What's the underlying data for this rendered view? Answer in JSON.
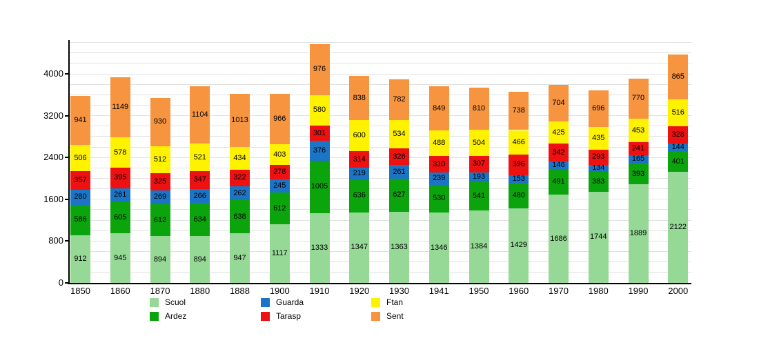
{
  "chart_data": {
    "type": "bar",
    "stacked": true,
    "title": "",
    "xlabel": "",
    "ylabel": "",
    "grid": true,
    "legend_position": "bottom",
    "y_ticks": [
      0,
      800,
      1600,
      2400,
      3200,
      4000
    ],
    "y_minor_step": 200,
    "y_axis_top_value": 4600,
    "categories": [
      "1850",
      "1860",
      "1870",
      "1880",
      "1888",
      "1900",
      "1910",
      "1920",
      "1930",
      "1941",
      "1950",
      "1960",
      "1970",
      "1980",
      "1990",
      "2000"
    ],
    "series": [
      {
        "name": "Scuol",
        "color": "#96d996",
        "values": [
          912,
          945,
          894,
          894,
          947,
          1117,
          1333,
          1347,
          1363,
          1346,
          1384,
          1429,
          1686,
          1744,
          1889,
          2122
        ]
      },
      {
        "name": "Ardez",
        "color": "#0ca40c",
        "values": [
          586,
          605,
          612,
          634,
          638,
          612,
          1005,
          636,
          627,
          530,
          541,
          480,
          491,
          383,
          393,
          401
        ]
      },
      {
        "name": "Guarda",
        "color": "#1b74c5",
        "values": [
          280,
          261,
          269,
          266,
          262,
          245,
          376,
          219,
          261,
          239,
          193,
          153,
          146,
          134,
          165,
          144
        ]
      },
      {
        "name": "Tarasp",
        "color": "#ee1111",
        "values": [
          357,
          395,
          325,
          347,
          322,
          278,
          301,
          314,
          326,
          310,
          307,
          396,
          342,
          293,
          241,
          328
        ]
      },
      {
        "name": "Ftan",
        "color": "#fff200",
        "values": [
          506,
          578,
          512,
          521,
          434,
          403,
          580,
          600,
          534,
          488,
          504,
          466,
          425,
          435,
          453,
          516
        ]
      },
      {
        "name": "Sent",
        "color": "#f79440",
        "values": [
          941,
          1149,
          930,
          1104,
          1013,
          966,
          976,
          838,
          782,
          849,
          810,
          738,
          704,
          696,
          770,
          865
        ]
      }
    ],
    "legend_columns": [
      [
        "Scuol",
        "Ardez"
      ],
      [
        "Guarda",
        "Tarasp"
      ],
      [
        "Ftan",
        "Sent"
      ]
    ],
    "colors": {
      "axis": "#000000",
      "gridline": "#e1e1e1",
      "label_text": "#000000",
      "background": "#ffffff"
    }
  }
}
